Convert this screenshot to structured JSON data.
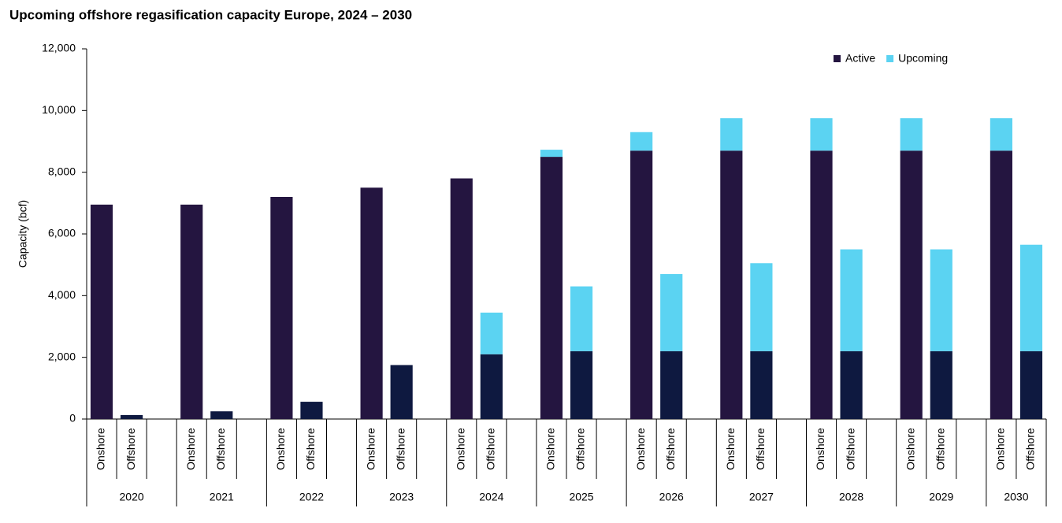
{
  "chart_data": {
    "type": "stacked-bar",
    "title": "Upcoming offshore regasification capacity Europe, 2024 – 2030",
    "y_label": "Capacity (bcf)",
    "groups": [
      "2020",
      "2021",
      "2022",
      "2023",
      "2024",
      "2025",
      "2026",
      "2027",
      "2028",
      "2029",
      "2030"
    ],
    "categories": [
      "Onshore",
      "Offshore",
      "Onshore",
      "Offshore",
      "Onshore",
      "Offshore",
      "Onshore",
      "Offshore",
      "Onshore",
      "Offshore",
      "Onshore",
      "Offshore",
      "Onshore",
      "Offshore",
      "Onshore",
      "Offshore",
      "Onshore",
      "Offshore",
      "Onshore",
      "Offshore",
      "Onshore",
      "Offshore"
    ],
    "series": [
      {
        "name": "Active",
        "color": "#241540",
        "colors": [
          "#241540",
          "#0e1940",
          "#241540",
          "#0e1940",
          "#241540",
          "#0e1940",
          "#241540",
          "#0e1940",
          "#241540",
          "#0e1940",
          "#241540",
          "#0e1940",
          "#241540",
          "#0e1940",
          "#241540",
          "#0e1940",
          "#241540",
          "#0e1940",
          "#241540",
          "#0e1940",
          "#241540",
          "#0e1940"
        ],
        "values": [
          6950,
          130,
          6950,
          250,
          7200,
          560,
          7500,
          1750,
          7800,
          2100,
          8500,
          2200,
          8700,
          2200,
          8700,
          2200,
          8700,
          2200,
          8700,
          2200,
          8700,
          2200
        ]
      },
      {
        "name": "Upcoming",
        "color": "#5bd3f2",
        "values": [
          0,
          0,
          0,
          0,
          0,
          0,
          0,
          0,
          0,
          1350,
          230,
          2100,
          600,
          2500,
          1050,
          2850,
          1050,
          3300,
          1050,
          3300,
          1050,
          3450
        ]
      }
    ],
    "ylim": [
      0,
      12000
    ],
    "yticks": [
      0,
      {
        "value": 2000,
        "label": "2,000"
      },
      {
        "value": 4000,
        "label": "4,000"
      },
      {
        "value": 6000,
        "label": "6,000"
      },
      {
        "value": 8000,
        "label": "8,000"
      },
      {
        "value": 10000,
        "label": "10,000"
      },
      {
        "value": 12000,
        "label": "12,000"
      }
    ],
    "legend": "top-right"
  }
}
